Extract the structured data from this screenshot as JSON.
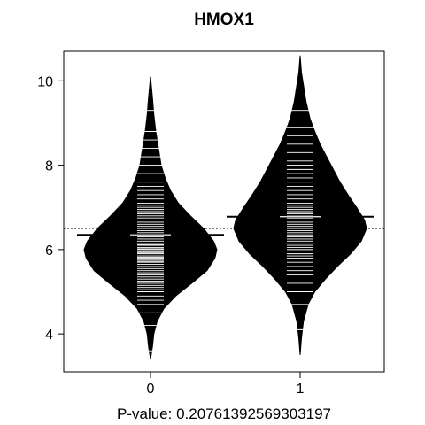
{
  "chart_data": {
    "type": "beanplot",
    "title": "HMOX1",
    "xlabel": "P-value: 0.20761392569303197",
    "ylabel": "",
    "categories": [
      "0",
      "1"
    ],
    "ylim": [
      3.1,
      10.7
    ],
    "y_ticks": [
      4,
      6,
      8,
      10
    ],
    "grid": false,
    "legend": "none",
    "overall_mean": 6.5,
    "groups": [
      {
        "label": "0",
        "mean": 6.35,
        "min": 3.4,
        "max": 10.1,
        "density_shape": [
          [
            3.4,
            0.0
          ],
          [
            3.7,
            0.03
          ],
          [
            4.0,
            0.05
          ],
          [
            4.3,
            0.1
          ],
          [
            4.6,
            0.2
          ],
          [
            4.9,
            0.38
          ],
          [
            5.2,
            0.62
          ],
          [
            5.5,
            0.85
          ],
          [
            5.8,
            0.97
          ],
          [
            6.0,
            1.0
          ],
          [
            6.2,
            0.95
          ],
          [
            6.5,
            0.8
          ],
          [
            6.8,
            0.6
          ],
          [
            7.1,
            0.42
          ],
          [
            7.4,
            0.3
          ],
          [
            7.7,
            0.22
          ],
          [
            8.0,
            0.16
          ],
          [
            8.4,
            0.12
          ],
          [
            8.8,
            0.08
          ],
          [
            9.2,
            0.05
          ],
          [
            9.6,
            0.03
          ],
          [
            10.1,
            0.0
          ]
        ],
        "observations": [
          3.6,
          4.2,
          4.5,
          4.7,
          4.8,
          4.9,
          5.0,
          5.05,
          5.1,
          5.15,
          5.2,
          5.25,
          5.3,
          5.35,
          5.4,
          5.45,
          5.5,
          5.55,
          5.6,
          5.65,
          5.7,
          5.72,
          5.75,
          5.8,
          5.82,
          5.85,
          5.9,
          5.92,
          5.95,
          6.0,
          6.02,
          6.05,
          6.1,
          6.12,
          6.15,
          6.2,
          6.25,
          6.3,
          6.35,
          6.4,
          6.45,
          6.5,
          6.55,
          6.6,
          6.65,
          6.7,
          6.75,
          6.8,
          6.85,
          6.9,
          6.95,
          7.0,
          7.05,
          7.1,
          7.2,
          7.3,
          7.4,
          7.5,
          7.6,
          7.8,
          8.0,
          8.2,
          8.4,
          8.6,
          8.8,
          9.3
        ]
      },
      {
        "label": "1",
        "mean": 6.78,
        "min": 3.5,
        "max": 10.6,
        "density_shape": [
          [
            3.5,
            0.0
          ],
          [
            3.9,
            0.02
          ],
          [
            4.3,
            0.05
          ],
          [
            4.7,
            0.12
          ],
          [
            5.0,
            0.22
          ],
          [
            5.3,
            0.38
          ],
          [
            5.6,
            0.56
          ],
          [
            5.9,
            0.76
          ],
          [
            6.2,
            0.92
          ],
          [
            6.5,
            1.0
          ],
          [
            6.7,
            0.97
          ],
          [
            7.0,
            0.85
          ],
          [
            7.3,
            0.72
          ],
          [
            7.6,
            0.6
          ],
          [
            7.9,
            0.5
          ],
          [
            8.2,
            0.4
          ],
          [
            8.5,
            0.3
          ],
          [
            8.8,
            0.22
          ],
          [
            9.1,
            0.15
          ],
          [
            9.5,
            0.09
          ],
          [
            9.9,
            0.05
          ],
          [
            10.2,
            0.02
          ],
          [
            10.6,
            0.0
          ]
        ],
        "observations": [
          4.1,
          4.7,
          5.0,
          5.2,
          5.4,
          5.5,
          5.6,
          5.7,
          5.8,
          5.85,
          5.9,
          6.0,
          6.05,
          6.1,
          6.15,
          6.2,
          6.25,
          6.3,
          6.35,
          6.4,
          6.45,
          6.5,
          6.55,
          6.6,
          6.65,
          6.7,
          6.75,
          6.8,
          6.85,
          6.9,
          6.95,
          7.0,
          7.05,
          7.1,
          7.2,
          7.3,
          7.4,
          7.5,
          7.6,
          7.7,
          7.8,
          7.9,
          8.0,
          8.1,
          8.3,
          8.5,
          8.7,
          8.9,
          9.3
        ]
      }
    ]
  }
}
